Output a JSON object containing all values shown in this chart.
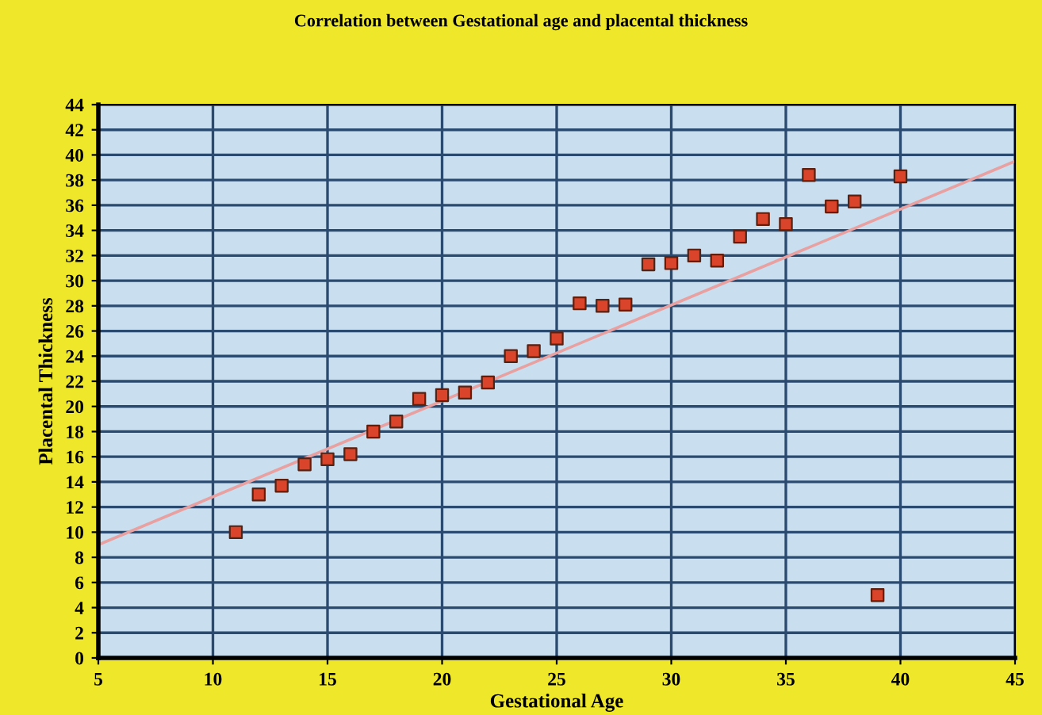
{
  "chart_data": {
    "type": "scatter",
    "title": "Correlation between Gestational age and placental thickness",
    "xlabel": "Gestational Age",
    "ylabel": "Placental Thickness",
    "series": [
      {
        "color": "#d9442a",
        "marker": "square",
        "x": [
          11,
          12,
          13,
          14,
          15,
          16,
          17,
          18,
          19,
          20,
          21,
          22,
          23,
          24,
          25,
          26,
          27,
          28,
          29,
          30,
          31,
          32,
          33,
          34,
          35,
          36,
          37,
          38,
          39,
          40
        ],
        "values": [
          10,
          13,
          13.7,
          15.4,
          15.8,
          16.2,
          18,
          18.8,
          20.6,
          20.9,
          21.1,
          21.9,
          24,
          24.4,
          25.4,
          28.2,
          28,
          28.1,
          31.3,
          31.4,
          32,
          31.6,
          33.5,
          34.9,
          34.5,
          38.4,
          35.9,
          36.3,
          5,
          38.3
        ]
      },
      {
        "type": "line",
        "color": "#e8a0a0",
        "marker": "none",
        "x": [
          5,
          45
        ],
        "values": [
          9,
          39.5
        ]
      }
    ],
    "xlim": [
      5,
      45
    ],
    "xticks": [
      5,
      10,
      15,
      20,
      25,
      30,
      35,
      40,
      45
    ],
    "ylim": [
      0,
      44
    ],
    "yticks": [
      0,
      2,
      4,
      6,
      8,
      10,
      12,
      14,
      16,
      18,
      20,
      22,
      24,
      26,
      28,
      30,
      32,
      34,
      36,
      38,
      40,
      42,
      44
    ],
    "grid": true,
    "legend": false
  }
}
